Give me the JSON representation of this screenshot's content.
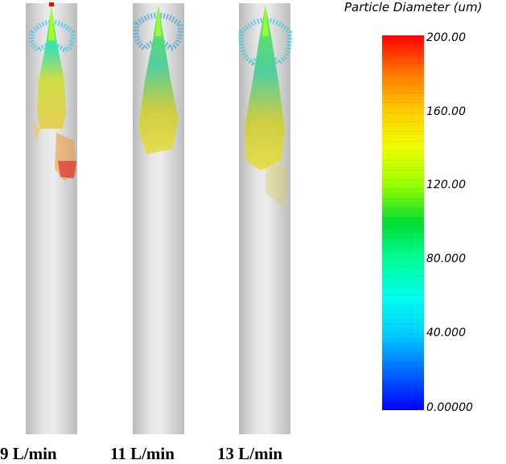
{
  "legend": {
    "title": "Particle Diameter (um)",
    "ticks": [
      "200.00",
      "160.00",
      "120.00",
      "80.000",
      "40.000",
      "0.00000"
    ],
    "colormap": [
      "#0000ff",
      "#0055ff",
      "#00aaff",
      "#00e5ff",
      "#00ffaa",
      "#00dd44",
      "#88ff00",
      "#ddff00",
      "#ffdd00",
      "#ffaa00",
      "#ff5500",
      "#ff0000"
    ]
  },
  "cases": [
    {
      "label": "9 L/min"
    },
    {
      "label": "11 L/min"
    },
    {
      "label": "13 L/min"
    }
  ]
}
